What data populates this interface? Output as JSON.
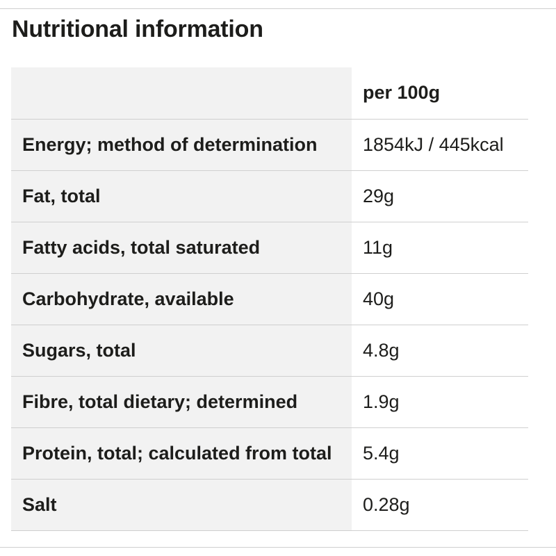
{
  "title": "Nutritional information",
  "table": {
    "header": {
      "label": "",
      "value": "per 100g"
    },
    "rows": [
      {
        "label": "Energy; method of determination",
        "value": "1854kJ / 445kcal"
      },
      {
        "label": "Fat, total",
        "value": "29g"
      },
      {
        "label": "Fatty acids, total saturated",
        "value": "11g"
      },
      {
        "label": "Carbohydrate, available",
        "value": "40g"
      },
      {
        "label": "Sugars, total",
        "value": "4.8g"
      },
      {
        "label": "Fibre, total dietary; determined",
        "value": "1.9g"
      },
      {
        "label": "Protein, total; calculated from total",
        "value": "5.4g"
      },
      {
        "label": "Salt",
        "value": "0.28g"
      }
    ]
  }
}
